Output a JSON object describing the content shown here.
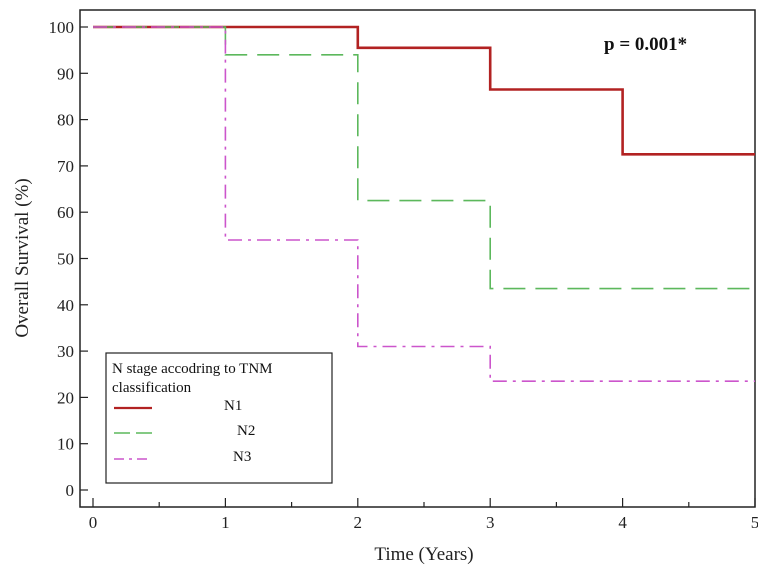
{
  "chart_data": {
    "type": "line",
    "step": true,
    "xlabel": "Time (Years)",
    "ylabel": "Overall Survival (%)",
    "xlim": [
      0,
      5
    ],
    "ylim": [
      0,
      100
    ],
    "x_ticks": [
      0,
      1,
      2,
      3,
      4,
      5
    ],
    "y_ticks": [
      0,
      10,
      20,
      30,
      40,
      50,
      60,
      70,
      80,
      90,
      100
    ],
    "grid": false,
    "annotation": "p = 0.001*",
    "legend": {
      "title_line1": "N stage accodring to TNM",
      "title_line2": "classification",
      "position": "bottom-left"
    },
    "series": [
      {
        "name": "N1",
        "color": "#b22222",
        "line_style": "solid",
        "points": [
          [
            0,
            100
          ],
          [
            2,
            100
          ],
          [
            2,
            95.5
          ],
          [
            3,
            95.5
          ],
          [
            3,
            86.5
          ],
          [
            4,
            86.5
          ],
          [
            4,
            72.5
          ],
          [
            5,
            72.5
          ]
        ]
      },
      {
        "name": "N2",
        "color": "#5cb85c",
        "line_style": "dashed",
        "points": [
          [
            0,
            100
          ],
          [
            1,
            100
          ],
          [
            1,
            94
          ],
          [
            2,
            94
          ],
          [
            2,
            62.5
          ],
          [
            3,
            62.5
          ],
          [
            3,
            43.5
          ],
          [
            5,
            43.5
          ]
        ]
      },
      {
        "name": "N3",
        "color": "#cc55cc",
        "line_style": "dash-dot",
        "points": [
          [
            0,
            100
          ],
          [
            1,
            100
          ],
          [
            1,
            54
          ],
          [
            2,
            54
          ],
          [
            2,
            31
          ],
          [
            3,
            31
          ],
          [
            3,
            23.5
          ],
          [
            5,
            23.5
          ]
        ]
      }
    ]
  }
}
